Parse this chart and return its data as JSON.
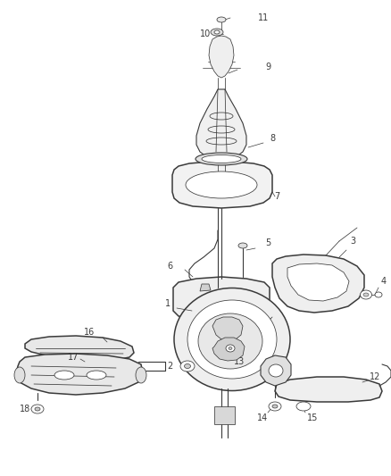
{
  "background_color": "#ffffff",
  "line_color": "#3a3a3a",
  "label_color": "#3a3a3a",
  "figsize": [
    4.39,
    5.33
  ],
  "dpi": 100,
  "lw_main": 1.1,
  "lw_med": 0.8,
  "lw_thin": 0.55,
  "label_fontsize": 7.0
}
